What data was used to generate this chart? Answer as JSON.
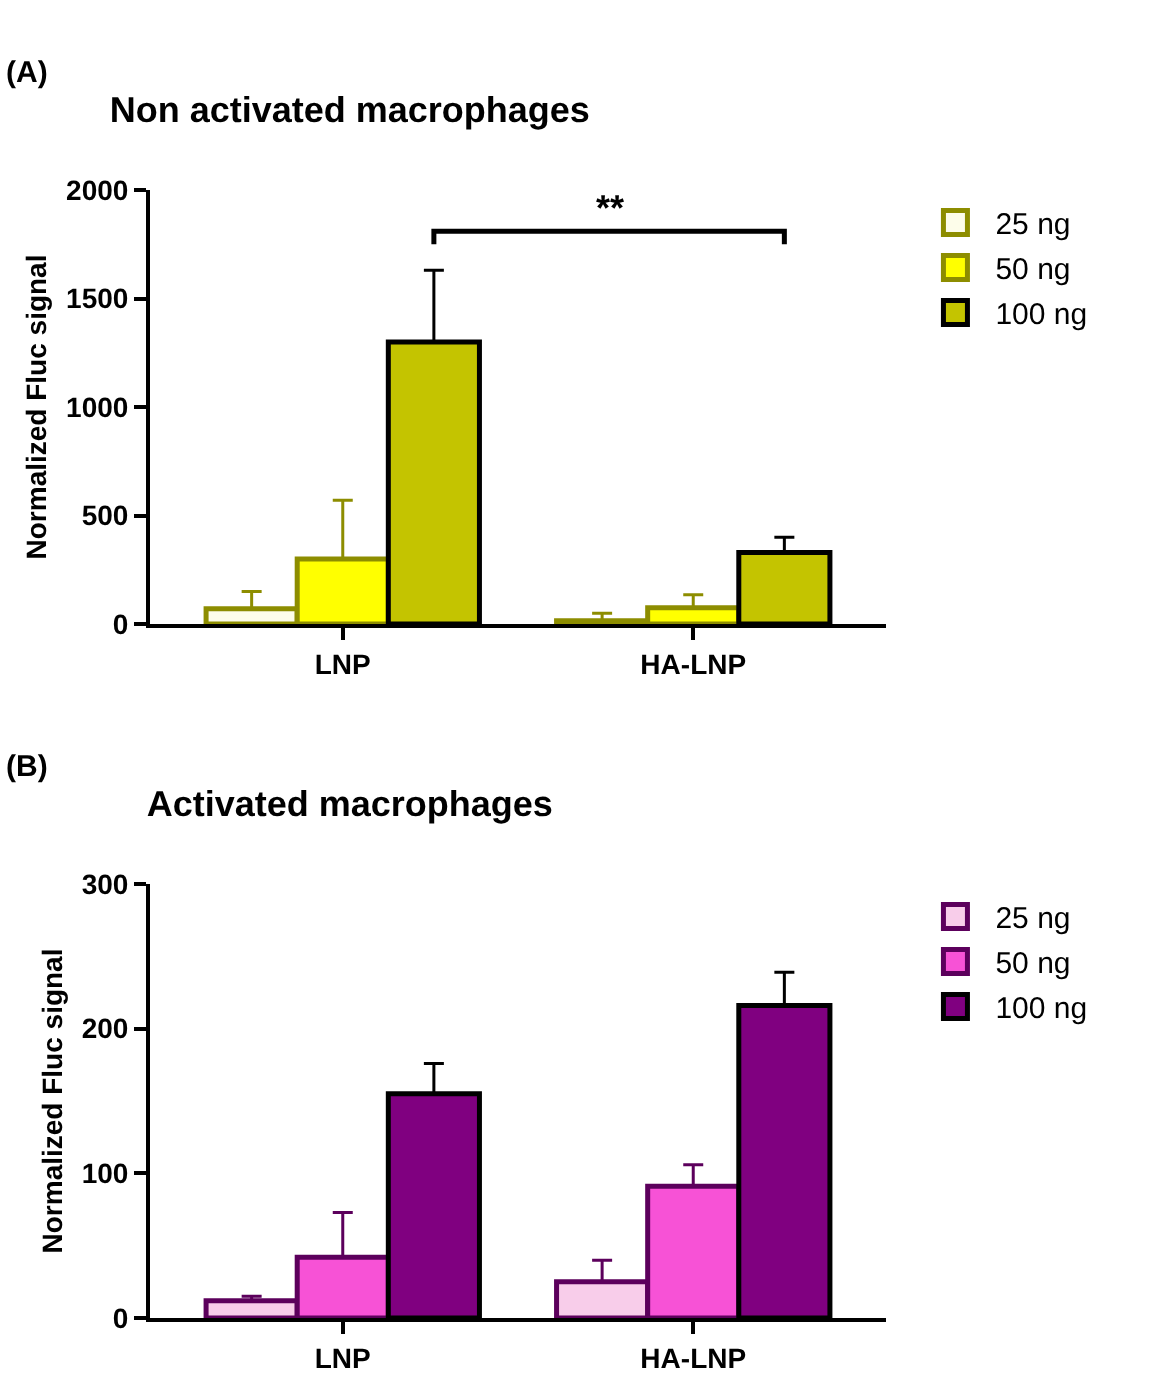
{
  "chart_data": [
    {
      "type": "bar",
      "title": "Non activated macrophages",
      "ylabel": "Normalized Fluc signal",
      "annotations": [
        "(A)",
        "**"
      ],
      "categories": [
        "LNP",
        "HA-LNP"
      ],
      "ylim": [
        0,
        2000
      ],
      "yticks": [
        0,
        500,
        1000,
        1500,
        2000
      ],
      "legend": "right",
      "grid": false,
      "series": [
        {
          "name": "25 ng",
          "color": "#fdfdea",
          "values": [
            70,
            15
          ],
          "errors": [
            [
              70,
              150
            ],
            [
              15,
              50
            ]
          ]
        },
        {
          "name": "50 ng",
          "color": "#ffff00",
          "values": [
            300,
            75
          ],
          "errors": [
            [
              300,
              570
            ],
            [
              75,
              135
            ]
          ]
        },
        {
          "name": "100 ng",
          "color": "#c4c400",
          "values": [
            1300,
            330
          ],
          "errors": [
            [
              1300,
              1630
            ],
            [
              330,
              400
            ]
          ]
        }
      ]
    },
    {
      "type": "bar",
      "title": "Activated macrophages",
      "ylabel": "Normalized Fluc signal",
      "annotations": [
        "(B)"
      ],
      "categories": [
        "LNP",
        "HA-LNP"
      ],
      "ylim": [
        0,
        300
      ],
      "yticks": [
        0,
        100,
        200,
        300
      ],
      "legend": "right",
      "grid": false,
      "series": [
        {
          "name": "25 ng",
          "color": "#f8cdea",
          "values": [
            12,
            25
          ],
          "errors": [
            [
              12,
              15
            ],
            [
              25,
              40
            ]
          ]
        },
        {
          "name": "50 ng",
          "color": "#f752d6",
          "values": [
            42,
            91
          ],
          "errors": [
            [
              42,
              73
            ],
            [
              91,
              106
            ]
          ]
        },
        {
          "name": "100 ng",
          "color": "#800080",
          "values": [
            155,
            216
          ],
          "errors": [
            [
              155,
              176
            ],
            [
              216,
              239
            ]
          ]
        }
      ]
    }
  ]
}
